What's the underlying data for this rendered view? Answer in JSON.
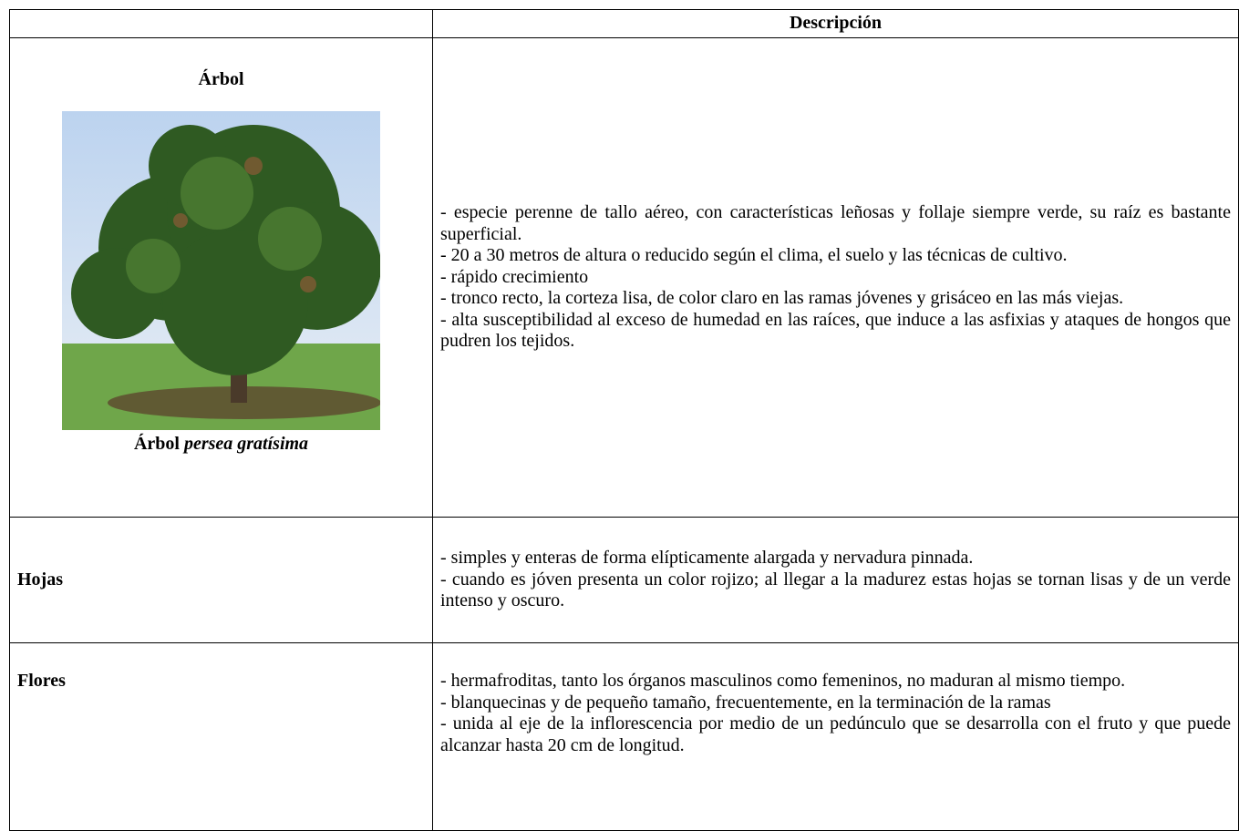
{
  "table": {
    "header": {
      "description": "Descripción"
    },
    "rows": [
      {
        "label": "Árbol",
        "caption": {
          "bold": "Árbol",
          "italic": "persea gratísima"
        },
        "description": [
          "- especie perenne de tallo aéreo, con características leñosas y follaje siempre verde, su raíz es bastante superficial.",
          "- 20 a 30 metros de altura o reducido según el clima, el suelo y las técnicas de cultivo.",
          "- rápido crecimiento",
          "- tronco recto, la corteza lisa, de color claro en las ramas jóvenes y grisáceo en las más viejas.",
          "- alta susceptibilidad al exceso de humedad en las raíces, que induce a las asfixias y ataques de hongos que pudren los tejidos."
        ]
      },
      {
        "label": "Hojas",
        "description": [
          "- simples y enteras de forma elípticamente alargada y nervadura pinnada.",
          "- cuando es jóven presenta un color rojizo; al llegar a la madurez estas hojas se tornan lisas y de un verde intenso y oscuro."
        ]
      },
      {
        "label": "Flores",
        "description": [
          "- hermafroditas, tanto los órganos masculinos como femeninos, no maduran al mismo tiempo.",
          "- blanquecinas y de pequeño tamaño, frecuentemente, en la terminación de la ramas",
          "- unida al eje de la inflorescencia por medio de un pedúnculo que se desarrolla con el fruto y que puede alcanzar hasta 20 cm de longitud."
        ]
      }
    ]
  }
}
